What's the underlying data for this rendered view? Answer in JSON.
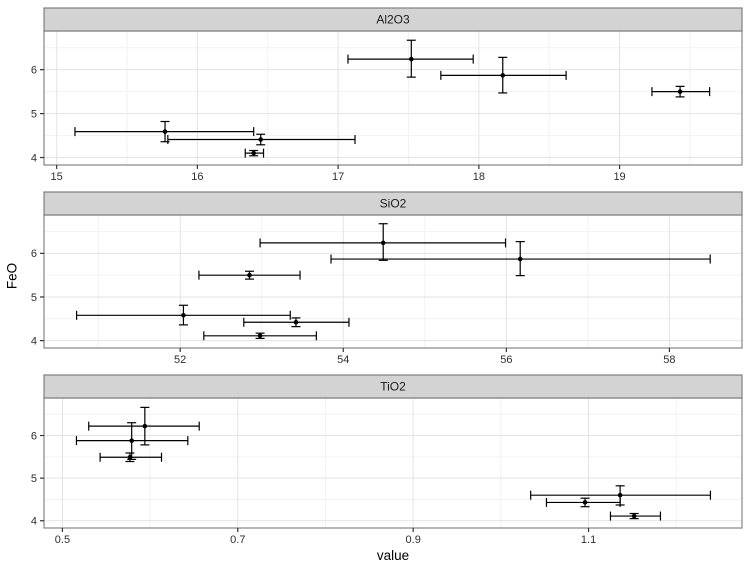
{
  "figure": {
    "xlabel": "value",
    "ylabel": "FeO",
    "colors": {
      "background": "#ffffff",
      "strip_fill": "#d3d3d3",
      "strip_border": "#7f7f7f",
      "strip_text": "#1a1a1a",
      "panel_bg": "#ffffff",
      "panel_border": "#858585",
      "grid_major": "#e3e3e3",
      "grid_minor": "#f2f2f2",
      "tick_mark": "#333333",
      "tick_label": "#2e2e2e",
      "point": "#000000",
      "errorbar": "#000000"
    }
  },
  "chart_data": [
    {
      "type": "scatter",
      "facet": "Al2O3",
      "xlabel": "value",
      "ylabel": "FeO",
      "xlim": [
        14.91,
        19.87
      ],
      "ylim": [
        3.83,
        6.88
      ],
      "xticks": [
        15,
        16,
        17,
        18,
        19
      ],
      "xtick_labels": [
        "15",
        "16",
        "17",
        "18",
        "19"
      ],
      "xminor": [
        15.5,
        16.5,
        17.5,
        18.5,
        19.5
      ],
      "yticks": [
        4,
        5,
        6
      ],
      "ytick_labels": [
        "4",
        "5",
        "6"
      ],
      "yminor": [
        4.5,
        5.5,
        6.5
      ],
      "grid": true,
      "points": [
        {
          "x": 17.52,
          "y": 6.24,
          "xmin": 17.07,
          "xmax": 17.96,
          "ymin": 5.83,
          "ymax": 6.67
        },
        {
          "x": 18.17,
          "y": 5.87,
          "xmin": 17.73,
          "xmax": 18.62,
          "ymin": 5.47,
          "ymax": 6.28
        },
        {
          "x": 19.43,
          "y": 5.5,
          "xmin": 19.23,
          "xmax": 19.64,
          "ymin": 5.38,
          "ymax": 5.62
        },
        {
          "x": 15.77,
          "y": 4.59,
          "xmin": 15.13,
          "xmax": 16.4,
          "ymin": 4.36,
          "ymax": 4.82
        },
        {
          "x": 16.45,
          "y": 4.41,
          "xmin": 15.79,
          "xmax": 17.12,
          "ymin": 4.29,
          "ymax": 4.53
        },
        {
          "x": 16.4,
          "y": 4.1,
          "xmin": 16.34,
          "xmax": 16.47,
          "ymin": 4.04,
          "ymax": 4.16
        }
      ]
    },
    {
      "type": "scatter",
      "facet": "SiO2",
      "xlabel": "value",
      "ylabel": "FeO",
      "xlim": [
        50.33,
        58.89
      ],
      "ylim": [
        3.83,
        6.88
      ],
      "xticks": [
        52,
        54,
        56,
        58
      ],
      "xtick_labels": [
        "52",
        "54",
        "56",
        "58"
      ],
      "xminor": [
        51,
        53,
        55,
        57
      ],
      "yticks": [
        4,
        5,
        6
      ],
      "ytick_labels": [
        "4",
        "5",
        "6"
      ],
      "yminor": [
        4.5,
        5.5,
        6.5
      ],
      "grid": true,
      "points": [
        {
          "x": 54.49,
          "y": 6.24,
          "xmin": 52.98,
          "xmax": 55.99,
          "ymin": 5.84,
          "ymax": 6.68
        },
        {
          "x": 56.17,
          "y": 5.87,
          "xmin": 53.85,
          "xmax": 58.5,
          "ymin": 5.49,
          "ymax": 6.27
        },
        {
          "x": 52.85,
          "y": 5.5,
          "xmin": 52.23,
          "xmax": 53.47,
          "ymin": 5.41,
          "ymax": 5.59
        },
        {
          "x": 52.04,
          "y": 4.58,
          "xmin": 50.73,
          "xmax": 53.35,
          "ymin": 4.36,
          "ymax": 4.81
        },
        {
          "x": 53.42,
          "y": 4.42,
          "xmin": 52.78,
          "xmax": 54.07,
          "ymin": 4.32,
          "ymax": 4.52
        },
        {
          "x": 52.98,
          "y": 4.11,
          "xmin": 52.29,
          "xmax": 53.67,
          "ymin": 4.05,
          "ymax": 4.17
        }
      ]
    },
    {
      "type": "scatter",
      "facet": "TiO2",
      "xlabel": "value",
      "ylabel": "FeO",
      "xlim": [
        0.479,
        1.275
      ],
      "ylim": [
        3.83,
        6.88
      ],
      "xticks": [
        0.5,
        0.7,
        0.9,
        1.1
      ],
      "xtick_labels": [
        "0.5",
        "0.7",
        "0.9",
        "1.1"
      ],
      "xminor": [
        0.6,
        0.8,
        1.0,
        1.2
      ],
      "yticks": [
        4,
        5,
        6
      ],
      "ytick_labels": [
        "4",
        "5",
        "6"
      ],
      "yminor": [
        4.5,
        5.5,
        6.5
      ],
      "grid": true,
      "points": [
        {
          "x": 0.594,
          "y": 6.22,
          "xmin": 0.53,
          "xmax": 0.656,
          "ymin": 5.78,
          "ymax": 6.66
        },
        {
          "x": 0.579,
          "y": 5.88,
          "xmin": 0.516,
          "xmax": 0.643,
          "ymin": 5.44,
          "ymax": 6.3
        },
        {
          "x": 0.577,
          "y": 5.49,
          "xmin": 0.543,
          "xmax": 0.613,
          "ymin": 5.39,
          "ymax": 5.59
        },
        {
          "x": 1.136,
          "y": 4.6,
          "xmin": 1.034,
          "xmax": 1.239,
          "ymin": 4.37,
          "ymax": 4.82
        },
        {
          "x": 1.096,
          "y": 4.43,
          "xmin": 1.052,
          "xmax": 1.136,
          "ymin": 4.33,
          "ymax": 4.53
        },
        {
          "x": 1.152,
          "y": 4.11,
          "xmin": 1.125,
          "xmax": 1.182,
          "ymin": 4.05,
          "ymax": 4.17
        }
      ]
    }
  ]
}
